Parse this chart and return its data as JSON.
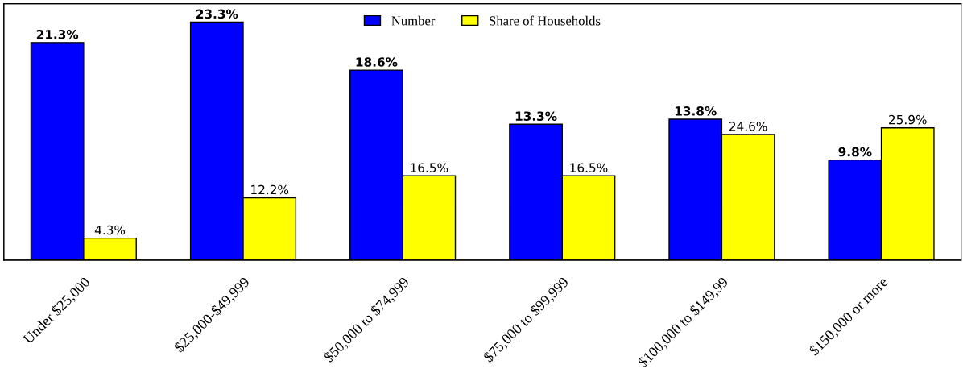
{
  "chart_data": {
    "type": "bar",
    "categories": [
      "Under $25,000",
      "$25,000-$49,999",
      "$50,000 to $74,999",
      "$75,000 to $99,999",
      "$100,000 to $149,99",
      "$150,000 or more"
    ],
    "series": [
      {
        "name": "Number",
        "color": "#0000ff",
        "values": [
          21.3,
          23.3,
          18.6,
          13.3,
          13.8,
          9.8
        ],
        "value_labels": [
          "21.3%",
          "23.3%",
          "18.6%",
          "13.3%",
          "13.8%",
          "9.8%"
        ]
      },
      {
        "name": "Share of Households",
        "color": "#ffff00",
        "axis": "y2",
        "values": [
          4.3,
          12.2,
          16.5,
          16.5,
          24.6,
          25.9
        ],
        "value_labels": [
          "4.3%",
          "12.2%",
          "16.5%",
          "16.5%",
          "24.6%",
          "25.9%"
        ]
      }
    ],
    "ylim": [
      0,
      25.1
    ],
    "y2lim": [
      0,
      50.2
    ],
    "tick_labels": "x",
    "grid": false,
    "legend": "top"
  }
}
